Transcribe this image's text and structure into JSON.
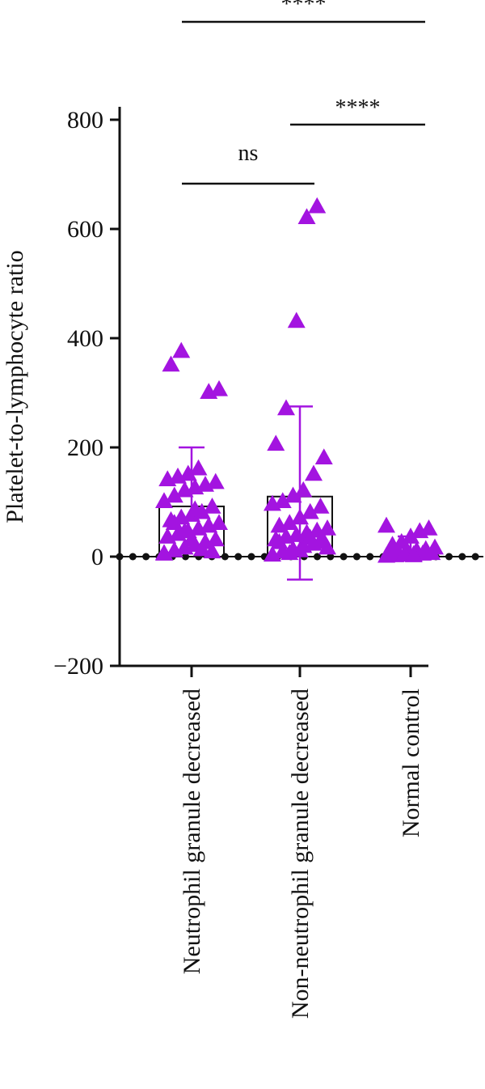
{
  "chart_data": {
    "type": "bar",
    "ylabel": "Platelet-to-lymphocyte ratio",
    "xlabel": "",
    "ylim": [
      -200,
      820
    ],
    "yticks": [
      -200,
      0,
      200,
      400,
      600,
      800
    ],
    "ytick_labels": [
      "−200",
      "0",
      "200",
      "400",
      "600",
      "800"
    ],
    "categories": [
      "Neutrophil granule decreased",
      "Non-neutrophil granule decreased",
      "Normal control"
    ],
    "bars": [
      {
        "category": "Neutrophil granule decreased",
        "mean": 92,
        "error_low": null,
        "error_high": 200
      },
      {
        "category": "Non-neutrophil granule decreased",
        "mean": 110,
        "error_low": -42,
        "error_high": 275
      },
      {
        "category": "Normal control",
        "mean": 0,
        "error_low": null,
        "error_high": 37
      }
    ],
    "points": [
      [
        5,
        10,
        15,
        20,
        25,
        30,
        35,
        40,
        45,
        50,
        55,
        60,
        65,
        70,
        75,
        80,
        90,
        100,
        110,
        120,
        125,
        130,
        135,
        140,
        145,
        150,
        160,
        300,
        305,
        350,
        375,
        30,
        12,
        8,
        4,
        60,
        45,
        85
      ],
      [
        2,
        8,
        12,
        18,
        22,
        26,
        30,
        35,
        38,
        42,
        46,
        50,
        55,
        60,
        70,
        80,
        90,
        95,
        100,
        110,
        120,
        150,
        180,
        205,
        270,
        430,
        620,
        640,
        15,
        25,
        5,
        10,
        33,
        28
      ],
      [
        0,
        1,
        2,
        3,
        4,
        5,
        5,
        6,
        8,
        10,
        12,
        15,
        20,
        25,
        35,
        45,
        50,
        55,
        2,
        3,
        1
      ]
    ],
    "series_color": "#a314e0",
    "comparisons": [
      {
        "from": "Neutrophil granule decreased",
        "to": "Non-neutrophil granule decreased",
        "label": "ns"
      },
      {
        "from": "Non-neutrophil granule decreased",
        "to": "Normal control",
        "label": "****"
      },
      {
        "from": "Neutrophil granule decreased",
        "to": "Normal control",
        "label": "****"
      }
    ],
    "zero_line_style": "dotted",
    "grid": false,
    "legend": "none"
  }
}
